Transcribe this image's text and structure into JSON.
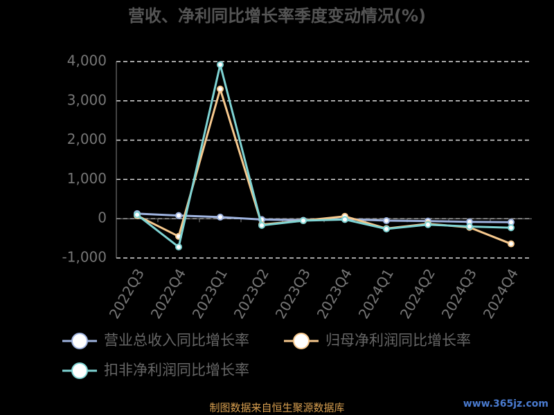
{
  "chart_data": {
    "type": "line",
    "title": "营收、净利同比增长率季度变动情况(%)",
    "categories": [
      "2022Q3",
      "2022Q4",
      "2023Q1",
      "2023Q2",
      "2023Q3",
      "2023Q4",
      "2024Q1",
      "2024Q2",
      "2024Q3",
      "2024Q4"
    ],
    "series": [
      {
        "name": "营业总收入同比增长率",
        "color": "#9fb4e0",
        "values": [
          130,
          80,
          40,
          -20,
          -40,
          -10,
          -50,
          -60,
          -80,
          -90
        ]
      },
      {
        "name": "归母净利润同比增长率",
        "color": "#f7c98e",
        "values": [
          80,
          -450,
          3300,
          -150,
          -50,
          60,
          -250,
          -130,
          -220,
          -640
        ]
      },
      {
        "name": "扣非净利润同比增长率",
        "color": "#7fd4d4",
        "values": [
          100,
          -720,
          3920,
          -170,
          -50,
          -20,
          -260,
          -150,
          -200,
          -230
        ]
      }
    ],
    "ylim": [
      -1000,
      4000
    ],
    "yticks": [
      {
        "value": -1000,
        "label": "-1,000"
      },
      0,
      {
        "value": 1000,
        "label": "1,000"
      },
      {
        "value": 2000,
        "label": "2,000"
      },
      {
        "value": 3000,
        "label": "3,000"
      },
      {
        "value": 4000,
        "label": "4,000"
      }
    ],
    "grid": true,
    "source": "制图数据来自恒生聚源数据库",
    "watermark": "www.365jz.com"
  }
}
